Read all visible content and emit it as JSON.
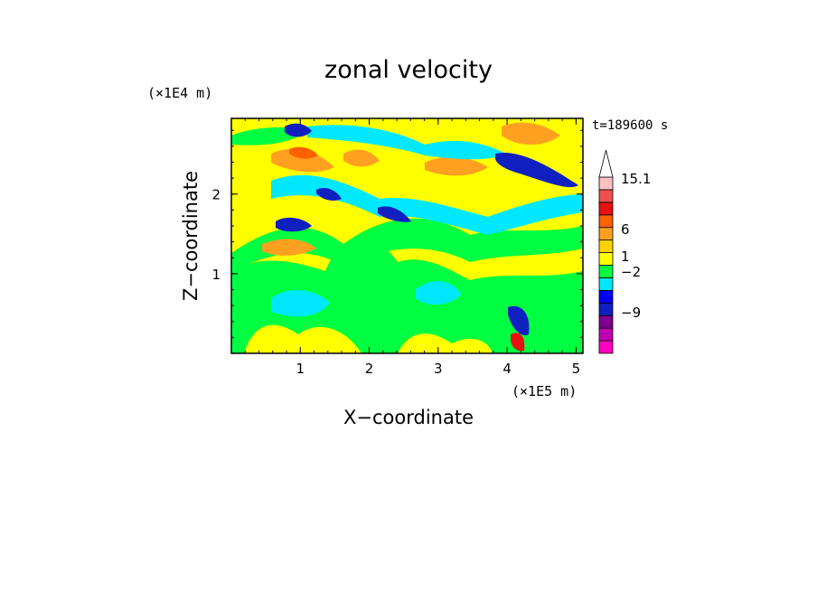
{
  "chart_data": {
    "type": "heatmap",
    "title": "zonal velocity",
    "xlabel": "X−coordinate",
    "ylabel": "Z−coordinate",
    "x_unit_label": "(×1E5 m)",
    "y_unit_label": "(×1E4 m)",
    "time_label": "t=189600 s",
    "xlim": [
      0,
      5.1
    ],
    "ylim": [
      0,
      2.95
    ],
    "x_ticks": [
      1,
      2,
      3,
      4,
      5
    ],
    "x_tick_labels": [
      "1",
      "2",
      "3",
      "4",
      "5"
    ],
    "y_ticks": [
      1,
      2
    ],
    "y_tick_labels": [
      "1",
      "2"
    ],
    "colorbar": {
      "orientation": "vertical",
      "placement": "right",
      "extend_max_arrow": true,
      "levels_bottom_to_top": [
        {
          "color": "#ff00c0"
        },
        {
          "color": "#c000b0"
        },
        {
          "color": "#800090"
        },
        {
          "color": "#1020c0"
        },
        {
          "color": "#0000ff"
        },
        {
          "color": "#00e8ff"
        },
        {
          "color": "#00ff40"
        },
        {
          "color": "#ffff00"
        },
        {
          "color": "#ffd000"
        },
        {
          "color": "#ffa020"
        },
        {
          "color": "#ff6000"
        },
        {
          "color": "#e81010"
        },
        {
          "color": "#f05050"
        },
        {
          "color": "#ffc0c0"
        },
        {
          "color": "#ffffff"
        }
      ],
      "labels": [
        {
          "text": "15.1",
          "value": 15.1
        },
        {
          "text": "6",
          "value": 6
        },
        {
          "text": "1",
          "value": 1
        },
        {
          "text": "−2",
          "value": -2
        },
        {
          "text": "−9",
          "value": -9
        }
      ]
    },
    "field_description_only": "Contour-filled zonal velocity field; mostly yellow/orange (positive, ~0–3) with bands of green/cyan (~−2 to 0), dark-blue jets (~−6) along tilted layers near Z≈1.6–2.7 and X≈0.7–4.3, and strong orange/red positive maxima near the top right."
  }
}
